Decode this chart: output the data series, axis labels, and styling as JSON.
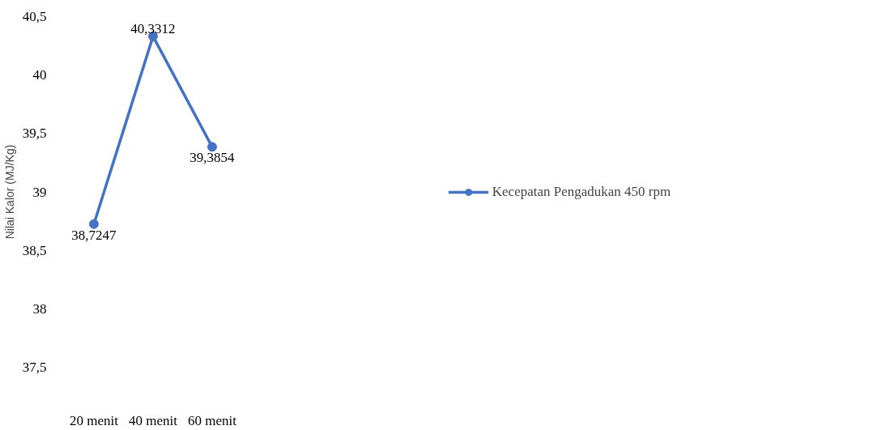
{
  "chart_data": {
    "type": "line",
    "ylabel": "Nilai Kalor (MJ/Kg)",
    "categories": [
      "20 menit",
      "40 menit",
      "60 menit"
    ],
    "series": [
      {
        "name": "Kecepatan Pengadukan 450 rpm",
        "color": "#4472c4",
        "values": [
          38.7247,
          40.3312,
          39.3854
        ],
        "value_labels": [
          "38,7247",
          "40,3312",
          "39,3854"
        ]
      }
    ],
    "ylim": [
      37.5,
      40.5
    ],
    "yticks": [
      {
        "value": 37.5,
        "label": "37,5"
      },
      38,
      {
        "value": 38.5,
        "label": "38,5"
      },
      39,
      {
        "value": 39.5,
        "label": "39,5"
      },
      40,
      {
        "value": 40.5,
        "label": "40,5"
      }
    ],
    "grid": false,
    "legend": "right",
    "marker": "circle",
    "line_style": "solid"
  }
}
